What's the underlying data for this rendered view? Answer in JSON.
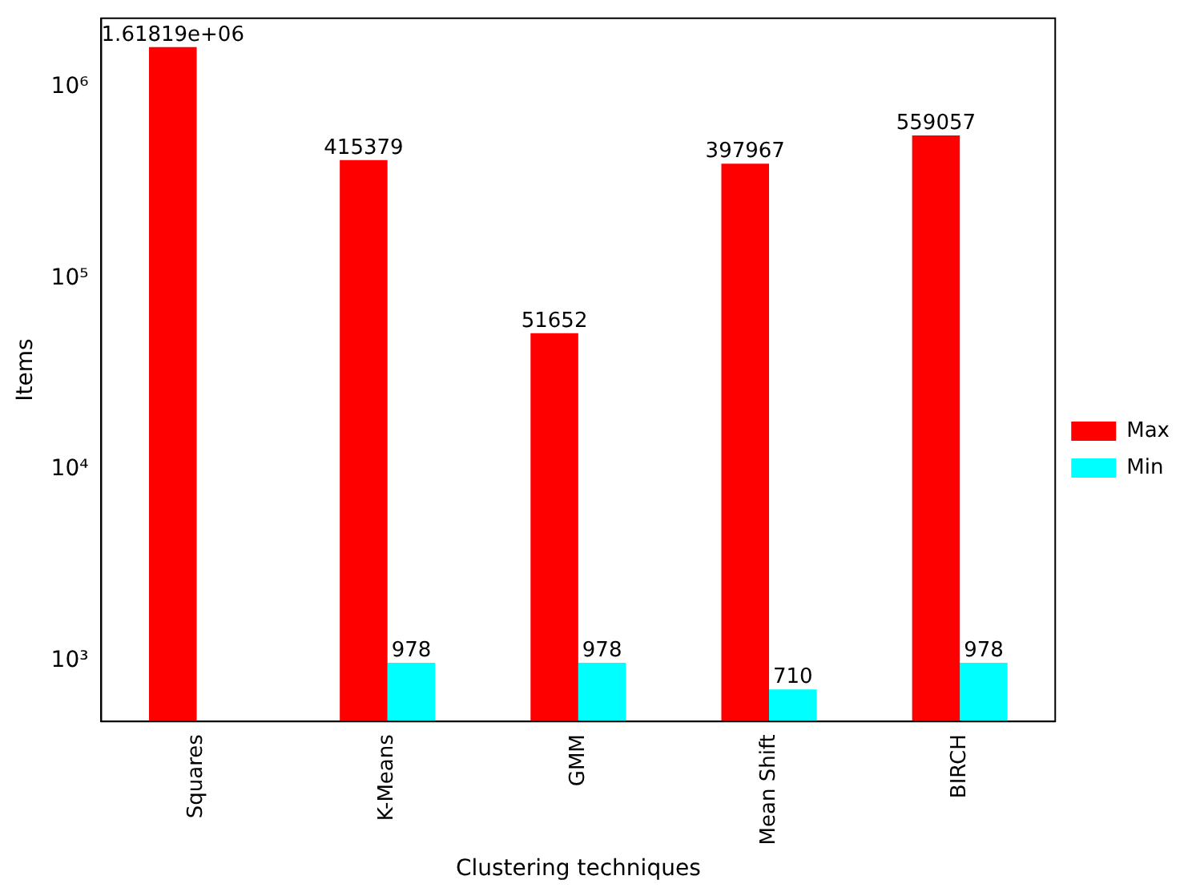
{
  "chart_data": {
    "type": "bar",
    "xlabel": "Clustering techniques",
    "ylabel": "Items",
    "categories": [
      "Squares",
      "K-Means",
      "GMM",
      "Mean Shift",
      "BIRCH"
    ],
    "series": [
      {
        "name": "Max",
        "color": "#ff0000",
        "values": [
          1618190,
          415379,
          51652,
          397967,
          559057
        ],
        "value_labels": [
          "1.61819e+06",
          "415379",
          "51652",
          "397967",
          "559057"
        ]
      },
      {
        "name": "Min",
        "color": "#00ffff",
        "values": [
          null,
          978,
          978,
          710,
          978
        ],
        "value_labels": [
          null,
          "978",
          "978",
          "710",
          "978"
        ]
      }
    ],
    "log": "y",
    "ylim": [
      483,
      2290000
    ],
    "yticks": [
      {
        "value": 1000,
        "label": "10³"
      },
      {
        "value": 10000,
        "label": "10⁴"
      },
      {
        "value": 100000,
        "label": "10⁵"
      },
      {
        "value": 1000000,
        "label": "10⁶"
      }
    ],
    "grid": false,
    "legend": "right"
  }
}
